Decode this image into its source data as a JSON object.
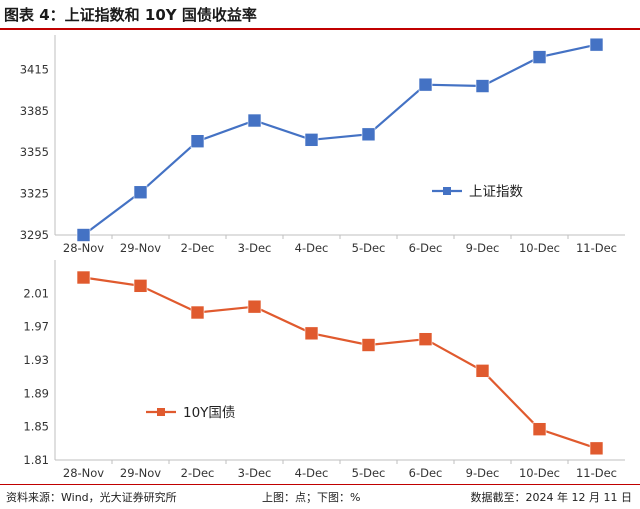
{
  "header": {
    "title": "图表 4：上证指数和 10Y 国债收益率"
  },
  "footer": {
    "source": "资料来源：Wind，光大证券研究所",
    "units": "上图：点；下图：%",
    "date": "数据截至：2024 年 12 月 11 日"
  },
  "colors": {
    "top_series": "#4472c4",
    "bottom_series": "#e05a2e",
    "rule": "#c00000"
  },
  "chart_data": [
    {
      "type": "line",
      "title": "上证指数",
      "categories": [
        "28-Nov",
        "29-Nov",
        "2-Dec",
        "3-Dec",
        "4-Dec",
        "5-Dec",
        "6-Dec",
        "9-Dec",
        "10-Dec",
        "11-Dec"
      ],
      "series": [
        {
          "name": "上证指数",
          "values": [
            3295,
            3326,
            3363,
            3378,
            3364,
            3368,
            3404,
            3403,
            3424,
            3433
          ]
        }
      ],
      "yticks": [
        3295,
        3325,
        3355,
        3385,
        3415
      ],
      "ylim": [
        3295,
        3440
      ],
      "ylabel": "点",
      "legend": "right-middle",
      "grid": false
    },
    {
      "type": "line",
      "title": "10Y国债",
      "categories": [
        "28-Nov",
        "29-Nov",
        "2-Dec",
        "3-Dec",
        "4-Dec",
        "5-Dec",
        "6-Dec",
        "9-Dec",
        "10-Dec",
        "11-Dec"
      ],
      "series": [
        {
          "name": "10Y国债",
          "values": [
            2.029,
            2.019,
            1.987,
            1.994,
            1.962,
            1.948,
            1.955,
            1.917,
            1.847,
            1.824
          ]
        }
      ],
      "yticks": [
        1.81,
        1.85,
        1.89,
        1.93,
        1.97,
        2.01
      ],
      "ylim": [
        1.81,
        2.05
      ],
      "ylabel": "%",
      "legend": "left-bottom",
      "grid": false
    }
  ]
}
